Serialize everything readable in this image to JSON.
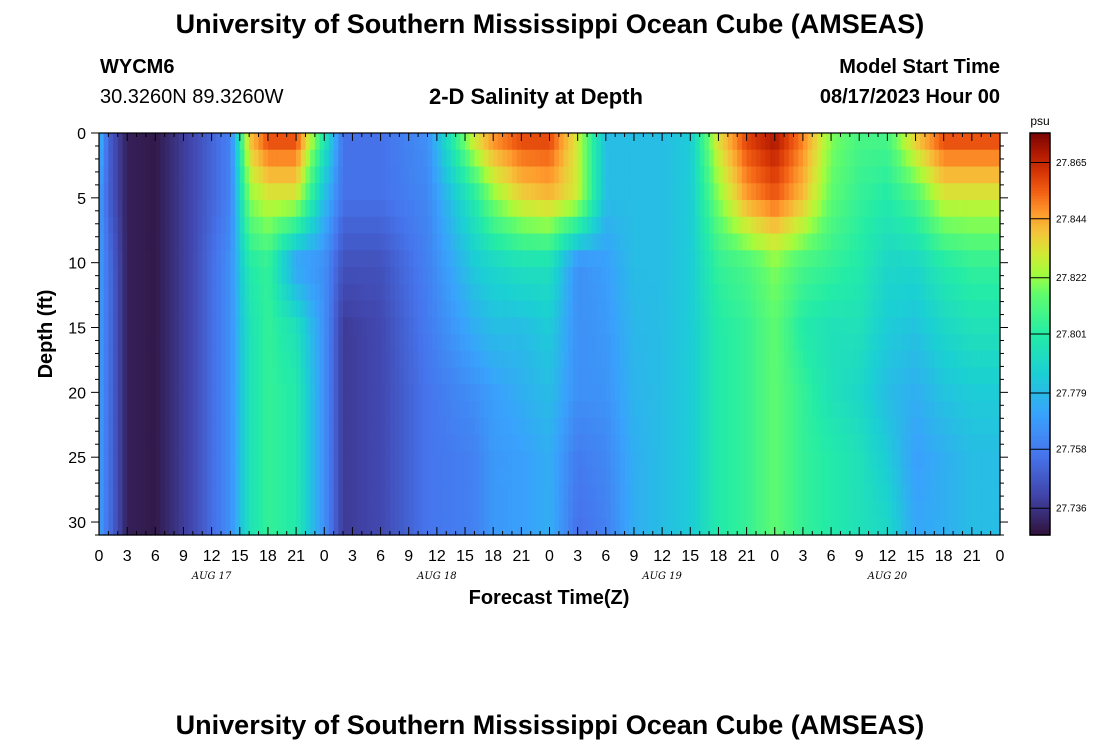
{
  "header": {
    "title": "University of Southern Mississippi Ocean Cube (AMSEAS)",
    "station_id": "WYCM6",
    "coordinates": "30.3260N  89.3260W",
    "subtitle": "2-D Salinity at Depth",
    "model_start_label": "Model Start Time",
    "model_start_value": "08/17/2023 Hour 00"
  },
  "footer": {
    "title": "University of Southern Mississippi Ocean Cube (AMSEAS)"
  },
  "colors": {
    "text": "#000000",
    "background": "#ffffff"
  },
  "chart_data": {
    "type": "heatmap",
    "variable": "salinity",
    "xlabel": "Forecast Time(Z)",
    "ylabel": "Depth (ft)",
    "x_tick_labels": [
      "0",
      "3",
      "6",
      "9",
      "12",
      "15",
      "18",
      "21",
      "0",
      "3",
      "6",
      "9",
      "12",
      "15",
      "18",
      "21",
      "0",
      "3",
      "6",
      "9",
      "12",
      "15",
      "18",
      "21",
      "0",
      "3",
      "6",
      "9",
      "12",
      "15",
      "18",
      "21",
      "0"
    ],
    "x_range_hours": [
      0,
      96
    ],
    "day_labels": [
      {
        "label": "AUG 17",
        "center_hour": 12
      },
      {
        "label": "AUG 18",
        "center_hour": 36
      },
      {
        "label": "AUG 19",
        "center_hour": 60
      },
      {
        "label": "AUG 20",
        "center_hour": 84
      }
    ],
    "y_ticks": [
      0,
      5,
      10,
      15,
      20,
      25,
      30
    ],
    "ylim": [
      0,
      31
    ],
    "colorbar": {
      "unit": "psu",
      "min": 27.726,
      "max": 27.876,
      "tick_values": [
        27.736,
        27.758,
        27.779,
        27.801,
        27.822,
        27.844,
        27.865
      ],
      "tick_labels": [
        "27.736",
        "27.758",
        "27.779",
        "27.801",
        "27.822",
        "27.844",
        "27.865"
      ]
    },
    "approx_salinity_psu_profile": {
      "depth_ft": [
        0,
        5,
        10,
        15,
        20,
        25,
        30
      ],
      "time_hours": [
        0,
        1,
        3,
        6,
        10,
        14,
        16,
        18,
        21,
        24,
        26,
        30,
        35,
        40,
        42,
        45,
        48,
        51,
        54,
        57,
        60,
        63,
        66,
        69,
        72,
        75,
        78,
        81,
        84,
        87,
        90,
        93,
        96
      ],
      "values": [
        [
          27.78,
          27.77,
          27.77,
          27.77,
          27.77,
          27.77,
          27.77
        ],
        [
          27.75,
          27.75,
          27.755,
          27.755,
          27.755,
          27.755,
          27.755
        ],
        [
          27.73,
          27.73,
          27.73,
          27.73,
          27.73,
          27.73,
          27.73
        ],
        [
          27.728,
          27.728,
          27.728,
          27.728,
          27.728,
          27.728,
          27.728
        ],
        [
          27.742,
          27.742,
          27.742,
          27.742,
          27.742,
          27.742,
          27.742
        ],
        [
          27.76,
          27.76,
          27.765,
          27.765,
          27.765,
          27.765,
          27.765
        ],
        [
          27.84,
          27.82,
          27.8,
          27.795,
          27.795,
          27.795,
          27.795
        ],
        [
          27.86,
          27.83,
          27.805,
          27.805,
          27.805,
          27.805,
          27.805
        ],
        [
          27.86,
          27.83,
          27.77,
          27.795,
          27.8,
          27.8,
          27.8
        ],
        [
          27.8,
          27.78,
          27.765,
          27.765,
          27.765,
          27.765,
          27.765
        ],
        [
          27.755,
          27.755,
          27.745,
          27.738,
          27.738,
          27.738,
          27.738
        ],
        [
          27.755,
          27.755,
          27.745,
          27.742,
          27.742,
          27.742,
          27.742
        ],
        [
          27.765,
          27.762,
          27.76,
          27.758,
          27.756,
          27.756,
          27.756
        ],
        [
          27.835,
          27.8,
          27.785,
          27.775,
          27.765,
          27.76,
          27.76
        ],
        [
          27.85,
          27.82,
          27.79,
          27.78,
          27.77,
          27.768,
          27.768
        ],
        [
          27.86,
          27.835,
          27.795,
          27.78,
          27.775,
          27.77,
          27.77
        ],
        [
          27.86,
          27.84,
          27.795,
          27.785,
          27.78,
          27.775,
          27.775
        ],
        [
          27.83,
          27.83,
          27.765,
          27.765,
          27.765,
          27.758,
          27.755
        ],
        [
          27.78,
          27.78,
          27.77,
          27.768,
          27.766,
          27.762,
          27.76
        ],
        [
          27.78,
          27.78,
          27.78,
          27.778,
          27.777,
          27.775,
          27.775
        ],
        [
          27.78,
          27.78,
          27.78,
          27.78,
          27.78,
          27.78,
          27.78
        ],
        [
          27.785,
          27.785,
          27.785,
          27.785,
          27.785,
          27.785,
          27.785
        ],
        [
          27.835,
          27.82,
          27.805,
          27.8,
          27.8,
          27.8,
          27.8
        ],
        [
          27.86,
          27.845,
          27.81,
          27.805,
          27.805,
          27.805,
          27.805
        ],
        [
          27.87,
          27.855,
          27.82,
          27.815,
          27.815,
          27.815,
          27.815
        ],
        [
          27.85,
          27.84,
          27.81,
          27.8,
          27.805,
          27.805,
          27.805
        ],
        [
          27.82,
          27.815,
          27.805,
          27.795,
          27.795,
          27.8,
          27.8
        ],
        [
          27.81,
          27.805,
          27.8,
          27.795,
          27.79,
          27.795,
          27.795
        ],
        [
          27.81,
          27.8,
          27.79,
          27.785,
          27.78,
          27.785,
          27.79
        ],
        [
          27.84,
          27.81,
          27.79,
          27.782,
          27.775,
          27.77,
          27.772
        ],
        [
          27.86,
          27.83,
          27.8,
          27.79,
          27.782,
          27.775,
          27.775
        ],
        [
          27.86,
          27.83,
          27.805,
          27.795,
          27.785,
          27.78,
          27.78
        ],
        [
          27.86,
          27.83,
          27.805,
          27.795,
          27.785,
          27.78,
          27.78
        ]
      ]
    }
  }
}
